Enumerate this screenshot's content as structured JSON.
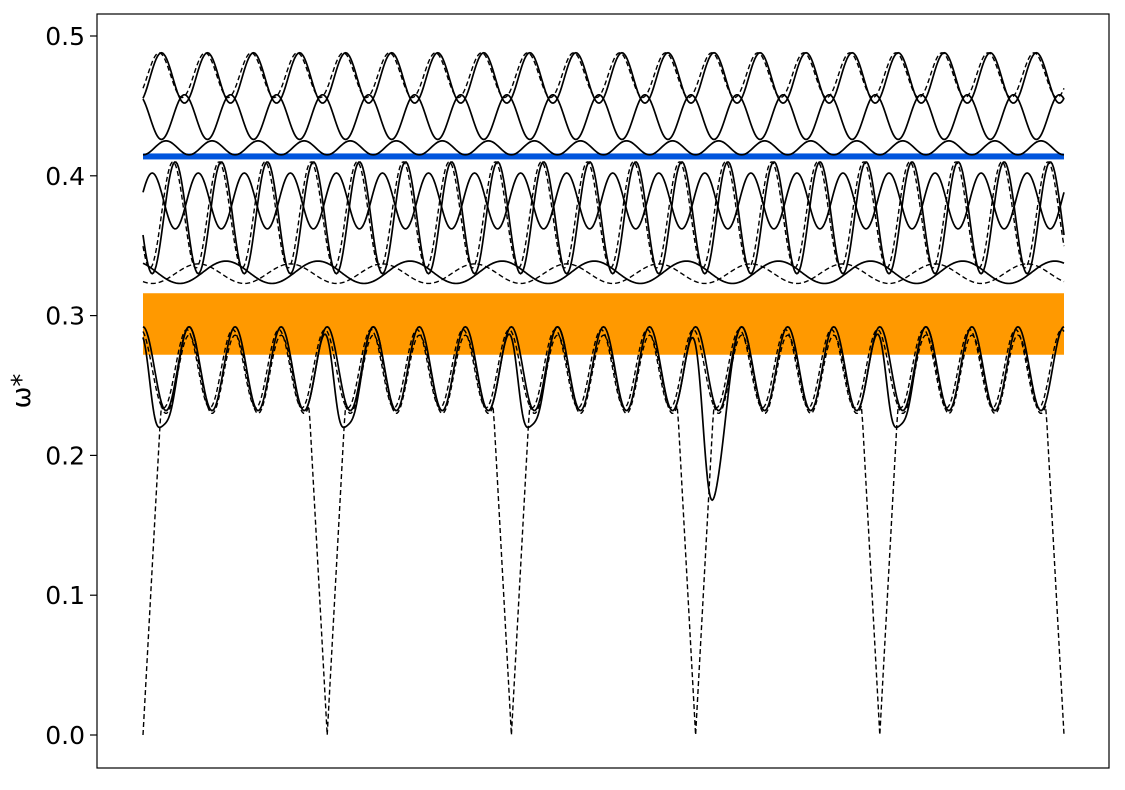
{
  "chart_data": {
    "type": "line",
    "title": "",
    "xlabel": "",
    "ylabel": "ω*",
    "ylim": [
      0,
      0.5
    ],
    "xlim": [
      0,
      5
    ],
    "grid": false,
    "yticks": [
      {
        "value": 0.0,
        "label": "0.0"
      },
      {
        "value": 0.1,
        "label": "0.1"
      },
      {
        "value": 0.2,
        "label": "0.2"
      },
      {
        "value": 0.3,
        "label": "0.3"
      },
      {
        "value": 0.4,
        "label": "0.4"
      },
      {
        "value": 0.5,
        "label": "0.5"
      }
    ],
    "band_gaps": [
      {
        "y_low": 0.272,
        "y_high": 0.316,
        "color": "#ff9900"
      },
      {
        "y_low": 0.413,
        "y_high": 0.416,
        "color": "#0055dd"
      }
    ],
    "segment_boundaries": [
      0,
      1,
      2,
      3,
      4,
      5
    ],
    "dips": [
      {
        "x": 0.09,
        "y": 0.22
      },
      {
        "x": 1.09,
        "y": 0.22
      },
      {
        "x": 2.09,
        "y": 0.22
      },
      {
        "x": 3.09,
        "y": 0.168
      },
      {
        "x": 4.09,
        "y": 0.22
      }
    ],
    "solid_branches": [
      {
        "base": 0.262,
        "amp": 0.03,
        "period": 0.25,
        "phase": 0.0
      },
      {
        "base": 0.331,
        "amp": 0.008,
        "period": 0.5,
        "phase": 0.1
      },
      {
        "base": 0.37,
        "amp": 0.04,
        "period": 0.25,
        "phase": 0.3
      },
      {
        "base": 0.382,
        "amp": 0.02,
        "period": 0.25,
        "phase": 0.8
      },
      {
        "base": 0.42,
        "amp": 0.005,
        "period": 0.25,
        "phase": 0.5
      },
      {
        "base": 0.442,
        "amp": 0.016,
        "period": 0.25,
        "phase": 0.1
      },
      {
        "base": 0.47,
        "amp": 0.018,
        "period": 0.25,
        "phase": 0.6
      }
    ],
    "dashed_branches": [
      {
        "base": 0.262,
        "amp": 0.028,
        "period": 0.25,
        "phase": 0.05
      },
      {
        "base": 0.33,
        "amp": 0.007,
        "period": 0.5,
        "phase": 0.4
      },
      {
        "base": 0.372,
        "amp": 0.038,
        "period": 0.25,
        "phase": 0.35
      },
      {
        "base": 0.472,
        "amp": 0.016,
        "period": 0.25,
        "phase": 0.65
      }
    ]
  }
}
